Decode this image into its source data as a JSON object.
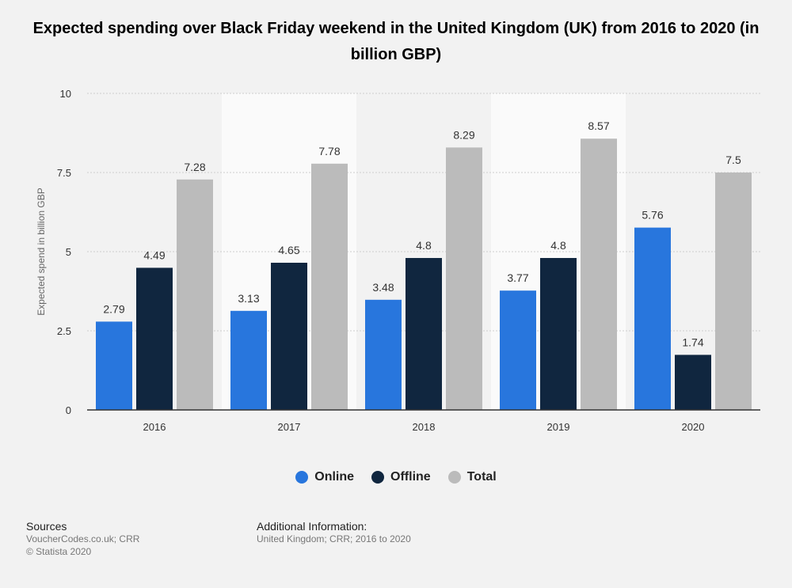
{
  "chart_data": {
    "type": "bar",
    "title": "Expected spending over Black Friday weekend in the United Kingdom (UK) from 2016 to 2020 (in billion GBP)",
    "xlabel": "",
    "ylabel": "Expected spend in billion GBP",
    "ylim": [
      0,
      10
    ],
    "yticks": [
      "0",
      "2.5",
      "5",
      "7.5",
      "10"
    ],
    "categories": [
      "2016",
      "2017",
      "2018",
      "2019",
      "2020"
    ],
    "series": [
      {
        "name": "Online",
        "color": "#2876dd",
        "values": [
          2.79,
          3.13,
          3.48,
          3.77,
          5.76
        ],
        "labels": [
          "2.79",
          "3.13",
          "3.48",
          "3.77",
          "5.76"
        ]
      },
      {
        "name": "Offline",
        "color": "#10263f",
        "values": [
          4.49,
          4.65,
          4.8,
          4.8,
          1.74
        ],
        "labels": [
          "4.49",
          "4.65",
          "4.8",
          "4.8",
          "1.74"
        ]
      },
      {
        "name": "Total",
        "color": "#bbbbbb",
        "values": [
          7.28,
          7.78,
          8.29,
          8.57,
          7.5
        ],
        "labels": [
          "7.28",
          "7.78",
          "8.29",
          "8.57",
          "7.5"
        ]
      }
    ],
    "grid": true,
    "legend_position": "bottom"
  },
  "footer": {
    "sources_heading": "Sources",
    "sources_line1": "VoucherCodes.co.uk; CRR",
    "sources_line2": "© Statista 2020",
    "additional_heading": "Additional Information:",
    "additional_text": "United Kingdom; CRR; 2016 to 2020"
  }
}
